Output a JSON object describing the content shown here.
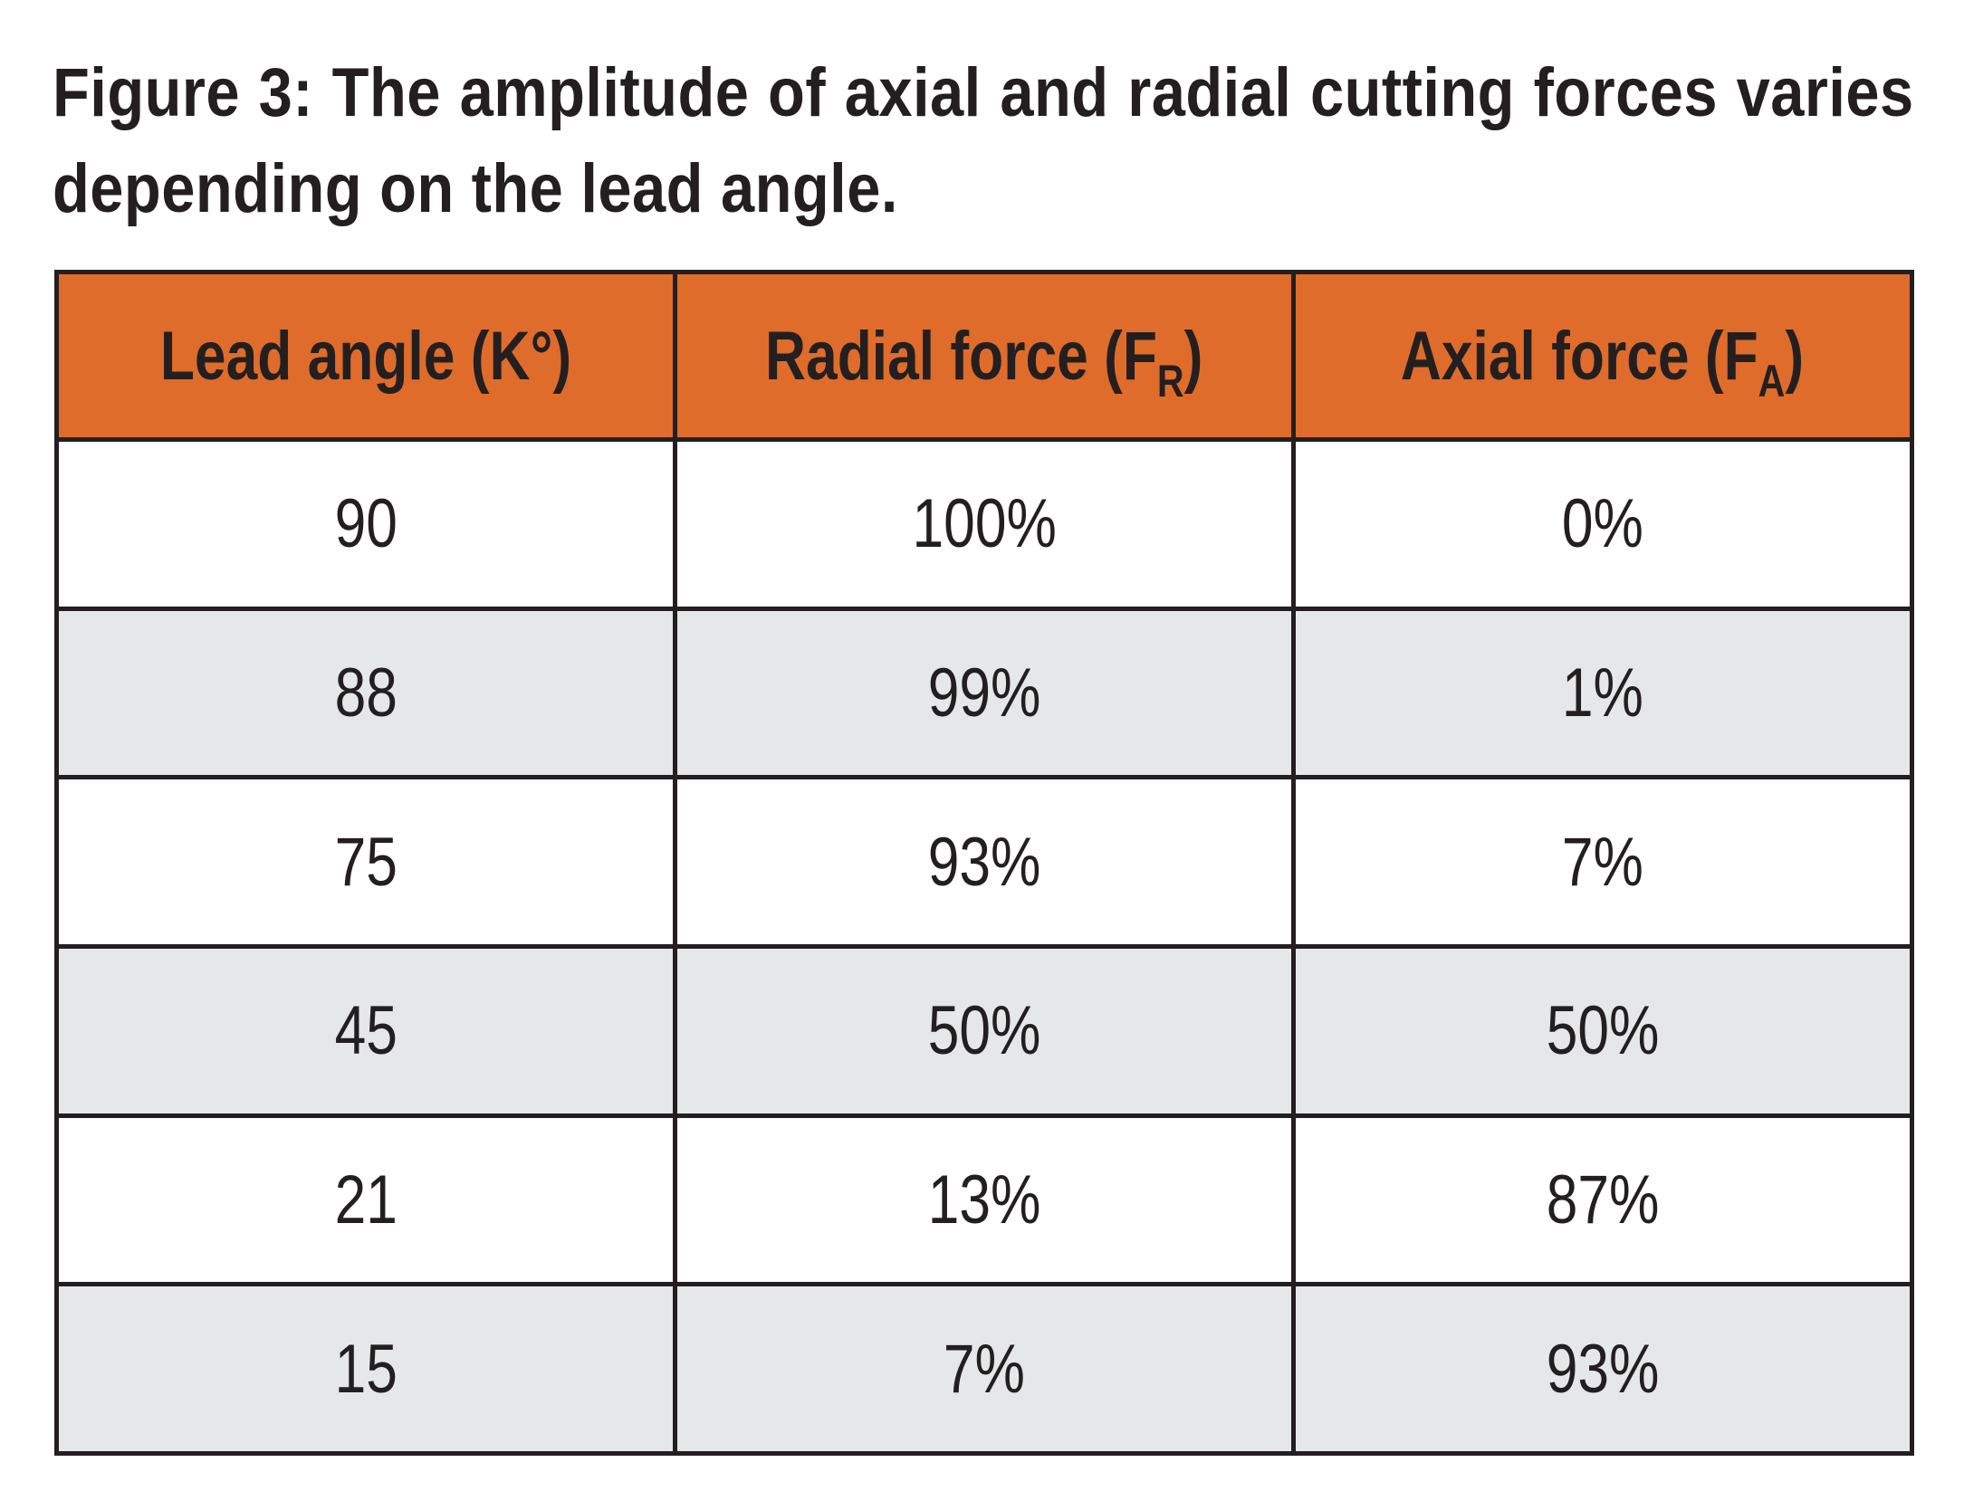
{
  "caption": "Figure 3: The amplitude of axial and radial cutting forces varies depending on the lead angle.",
  "table": {
    "headers": [
      {
        "main": "Lead angle (K°)",
        "sub": "",
        "close": ""
      },
      {
        "main": "Radial force (F",
        "sub": "R",
        "close": ")"
      },
      {
        "main": "Axial force (F",
        "sub": "A",
        "close": ")"
      }
    ],
    "rows": [
      [
        "90",
        "100%",
        "0%"
      ],
      [
        "88",
        "99%",
        "1%"
      ],
      [
        "75",
        "93%",
        "7%"
      ],
      [
        "45",
        "50%",
        "50%"
      ],
      [
        "21",
        "13%",
        "87%"
      ],
      [
        "15",
        "7%",
        "93%"
      ]
    ]
  },
  "colors": {
    "header_bg": "#df6c2a",
    "stripe_bg": "#e6e7e8",
    "text": "#231f20"
  }
}
